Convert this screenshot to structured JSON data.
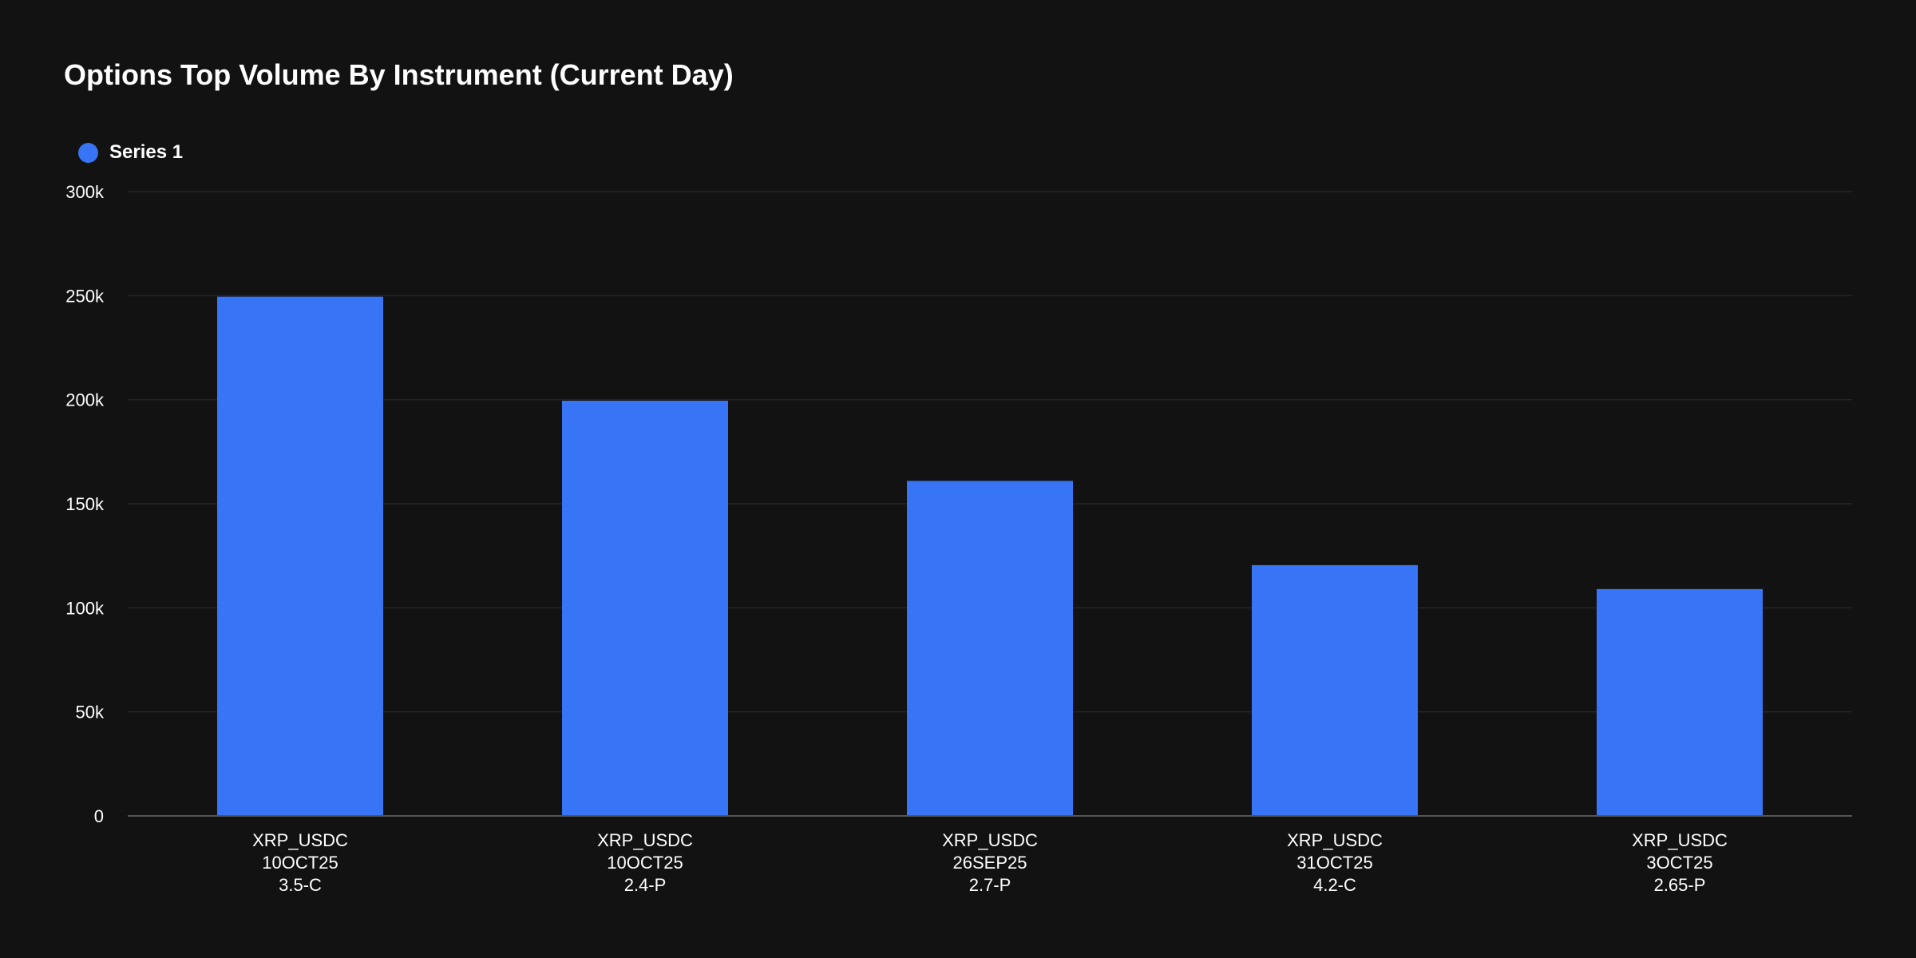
{
  "chart_data": {
    "type": "bar",
    "title": "Options Top Volume By Instrument (Current Day)",
    "xlabel": "",
    "ylabel": "",
    "categories": [
      [
        "XRP_USDC",
        "10OCT25",
        "3.5-C"
      ],
      [
        "XRP_USDC",
        "10OCT25",
        "2.4-P"
      ],
      [
        "XRP_USDC",
        "26SEP25",
        "2.7-P"
      ],
      [
        "XRP_USDC",
        "31OCT25",
        "4.2-C"
      ],
      [
        "XRP_USDC",
        "3OCT25",
        "2.65-P"
      ]
    ],
    "series": [
      {
        "name": "Series 1",
        "color": "#3874f6",
        "values": [
          249500,
          199500,
          161000,
          120500,
          109000
        ]
      }
    ],
    "ylim": [
      0,
      300000
    ],
    "yticks": [
      0,
      50000,
      100000,
      150000,
      200000,
      250000,
      300000
    ],
    "ytick_labels": [
      "0",
      "50k",
      "100k",
      "150k",
      "200k",
      "250k",
      "300k"
    ],
    "grid": true,
    "legend": "top-left"
  },
  "colors": {
    "background": "#121212",
    "grid": "#262626",
    "axis": "#555555",
    "text": "#ffffff"
  }
}
